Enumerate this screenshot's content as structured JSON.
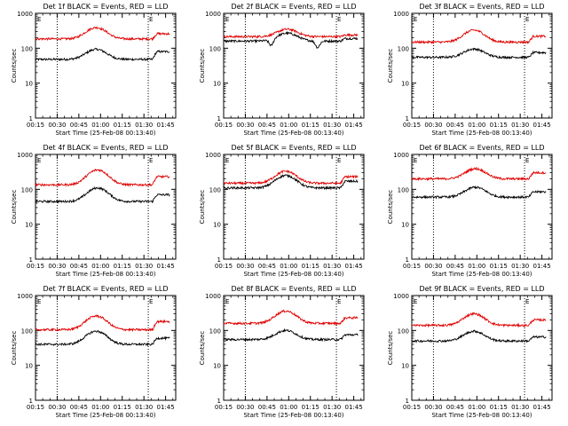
{
  "chart_data": [
    {
      "type": "line",
      "title": "Det 1f BLACK = Events, RED = LLD",
      "xlabel": "Start Time (25-Feb-08 00:13:40)",
      "ylabel": "Counts/sec",
      "xticks": [
        "00:15",
        "00:30",
        "00:45",
        "01:00",
        "01:15",
        "01:30",
        "01:45"
      ],
      "yticks": [
        "1",
        "10",
        "100",
        "1000"
      ],
      "yscale": "log",
      "ylim": [
        1,
        1000
      ],
      "xlim_minutes": [
        15,
        52
      ],
      "markers": [
        "E",
        "E"
      ],
      "vlines": [
        "00:30",
        "01:33"
      ],
      "series": [
        {
          "color": "#000000",
          "base": 48,
          "bump": 93,
          "bump_center": "00:57",
          "end_level": 80,
          "dips": []
        },
        {
          "color": "#e00000",
          "base": 185,
          "bump": 390,
          "bump_center": "00:57",
          "end_level": 260,
          "dips": []
        }
      ]
    },
    {
      "type": "line",
      "title": "Det 2f BLACK = Events, RED = LLD",
      "xlabel": "Start Time (25-Feb-08 00:13:40)",
      "ylabel": "Counts/sec",
      "xticks": [
        "00:15",
        "00:30",
        "00:45",
        "01:00",
        "01:15",
        "01:30",
        "01:45"
      ],
      "yticks": [
        "1",
        "10",
        "100",
        "1000"
      ],
      "yscale": "log",
      "ylim": [
        1,
        1000
      ],
      "xlim_minutes": [
        15,
        52
      ],
      "markers": [
        "E",
        "E"
      ],
      "vlines": [
        "00:30",
        "01:33"
      ],
      "series": [
        {
          "color": "#000000",
          "base": 160,
          "bump": 270,
          "bump_center": "00:59",
          "end_level": 190,
          "dips": [
            "00:48",
            "01:20"
          ]
        },
        {
          "color": "#e00000",
          "base": 215,
          "bump": 350,
          "bump_center": "00:59",
          "end_level": 240,
          "dips": []
        }
      ]
    },
    {
      "type": "line",
      "title": "Det 3f BLACK = Events, RED = LLD",
      "xlabel": "Start Time (25-Feb-08 00:13:40)",
      "ylabel": "Counts/sec",
      "xticks": [
        "00:15",
        "00:30",
        "00:45",
        "01:00",
        "01:15",
        "01:30",
        "01:45"
      ],
      "yticks": [
        "1",
        "10",
        "100",
        "1000"
      ],
      "yscale": "log",
      "ylim": [
        1,
        1000
      ],
      "xlim_minutes": [
        15,
        52
      ],
      "markers": [
        "E",
        "E"
      ],
      "vlines": [
        "00:30",
        "01:33"
      ],
      "series": [
        {
          "color": "#000000",
          "base": 55,
          "bump": 95,
          "bump_center": "00:58",
          "end_level": 75,
          "dips": []
        },
        {
          "color": "#e00000",
          "base": 150,
          "bump": 330,
          "bump_center": "00:58",
          "end_level": 220,
          "dips": []
        }
      ]
    },
    {
      "type": "line",
      "title": "Det 4f BLACK = Events, RED = LLD",
      "xlabel": "Start Time (25-Feb-08 00:13:40)",
      "ylabel": "Counts/sec",
      "xticks": [
        "00:15",
        "00:30",
        "00:45",
        "01:00",
        "01:15",
        "01:30",
        "01:45"
      ],
      "yticks": [
        "1",
        "10",
        "100",
        "1000"
      ],
      "yscale": "log",
      "ylim": [
        1,
        1000
      ],
      "xlim_minutes": [
        15,
        52
      ],
      "markers": [
        "E",
        "E"
      ],
      "vlines": [
        "00:30",
        "01:33"
      ],
      "series": [
        {
          "color": "#000000",
          "base": 45,
          "bump": 110,
          "bump_center": "00:58",
          "end_level": 70,
          "dips": []
        },
        {
          "color": "#e00000",
          "base": 135,
          "bump": 360,
          "bump_center": "00:58",
          "end_level": 230,
          "dips": []
        }
      ]
    },
    {
      "type": "line",
      "title": "Det 5f BLACK = Events, RED = LLD",
      "xlabel": "Start Time (25-Feb-08 00:13:40)",
      "ylabel": "Counts/sec",
      "xticks": [
        "00:15",
        "00:30",
        "00:45",
        "01:00",
        "01:15",
        "01:30",
        "01:45"
      ],
      "yticks": [
        "1",
        "10",
        "100",
        "1000"
      ],
      "yscale": "log",
      "ylim": [
        1,
        1000
      ],
      "xlim_minutes": [
        15,
        52
      ],
      "markers": [
        "E",
        "E"
      ],
      "vlines": [
        "00:30",
        "01:33"
      ],
      "series": [
        {
          "color": "#000000",
          "base": 110,
          "bump": 250,
          "bump_center": "00:58",
          "end_level": 170,
          "dips": []
        },
        {
          "color": "#e00000",
          "base": 150,
          "bump": 330,
          "bump_center": "00:58",
          "end_level": 230,
          "dips": []
        }
      ]
    },
    {
      "type": "line",
      "title": "Det 6f BLACK = Events, RED = LLD",
      "xlabel": "Start Time (25-Feb-08 00:13:40)",
      "ylabel": "Counts/sec",
      "xticks": [
        "00:15",
        "00:30",
        "00:45",
        "01:00",
        "01:15",
        "01:30",
        "01:45"
      ],
      "yticks": [
        "1",
        "10",
        "100",
        "1000"
      ],
      "yscale": "log",
      "ylim": [
        1,
        1000
      ],
      "xlim_minutes": [
        15,
        52
      ],
      "markers": [
        "E",
        "E"
      ],
      "vlines": [
        "00:30",
        "01:33"
      ],
      "series": [
        {
          "color": "#000000",
          "base": 60,
          "bump": 115,
          "bump_center": "00:59",
          "end_level": 85,
          "dips": []
        },
        {
          "color": "#e00000",
          "base": 200,
          "bump": 390,
          "bump_center": "00:59",
          "end_level": 300,
          "dips": []
        }
      ]
    },
    {
      "type": "line",
      "title": "Det 7f BLACK = Events, RED = LLD",
      "xlabel": "Start Time (25-Feb-08 00:13:40)",
      "ylabel": "Counts/sec",
      "xticks": [
        "00:15",
        "00:30",
        "00:45",
        "01:00",
        "01:15",
        "01:30",
        "01:45"
      ],
      "yticks": [
        "1",
        "10",
        "100",
        "1000"
      ],
      "yscale": "log",
      "ylim": [
        1,
        1000
      ],
      "xlim_minutes": [
        15,
        52
      ],
      "markers": [
        "E",
        "E"
      ],
      "vlines": [
        "00:30",
        "01:33"
      ],
      "series": [
        {
          "color": "#000000",
          "base": 40,
          "bump": 95,
          "bump_center": "00:57",
          "end_level": 60,
          "dips": []
        },
        {
          "color": "#e00000",
          "base": 105,
          "bump": 260,
          "bump_center": "00:57",
          "end_level": 180,
          "dips": []
        }
      ]
    },
    {
      "type": "line",
      "title": "Det 8f BLACK = Events, RED = LLD",
      "xlabel": "Start Time (25-Feb-08 00:13:40)",
      "ylabel": "Counts/sec",
      "xticks": [
        "00:15",
        "00:30",
        "00:45",
        "01:00",
        "01:15",
        "01:30",
        "01:45"
      ],
      "yticks": [
        "1",
        "10",
        "100",
        "1000"
      ],
      "yscale": "log",
      "ylim": [
        1,
        1000
      ],
      "xlim_minutes": [
        15,
        52
      ],
      "markers": [
        "E",
        "E"
      ],
      "vlines": [
        "00:30",
        "01:33"
      ],
      "series": [
        {
          "color": "#000000",
          "base": 55,
          "bump": 100,
          "bump_center": "00:58",
          "end_level": 75,
          "dips": []
        },
        {
          "color": "#e00000",
          "base": 160,
          "bump": 360,
          "bump_center": "00:58",
          "end_level": 230,
          "dips": []
        }
      ]
    },
    {
      "type": "line",
      "title": "Det 9f BLACK = Events, RED = LLD",
      "xlabel": "Start Time (25-Feb-08 00:13:40)",
      "ylabel": "Counts/sec",
      "xticks": [
        "00:15",
        "00:30",
        "00:45",
        "01:00",
        "01:15",
        "01:30",
        "01:45"
      ],
      "yticks": [
        "1",
        "10",
        "100",
        "1000"
      ],
      "yscale": "log",
      "ylim": [
        1,
        1000
      ],
      "xlim_minutes": [
        15,
        52
      ],
      "markers": [
        "E",
        "E"
      ],
      "vlines": [
        "00:30",
        "01:33"
      ],
      "series": [
        {
          "color": "#000000",
          "base": 50,
          "bump": 95,
          "bump_center": "00:58",
          "end_level": 65,
          "dips": []
        },
        {
          "color": "#e00000",
          "base": 140,
          "bump": 300,
          "bump_center": "00:58",
          "end_level": 200,
          "dips": []
        }
      ]
    }
  ]
}
